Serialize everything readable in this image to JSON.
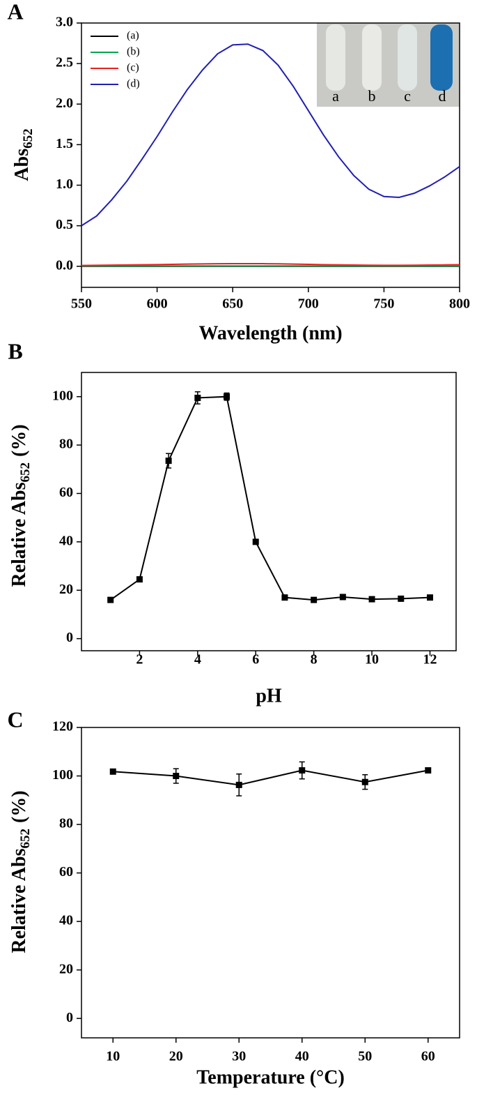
{
  "chart_data": [
    {
      "type": "line",
      "panel_label": "A",
      "x_label": "Wavelength (nm)",
      "y_label": "Abs",
      "y_label_subscript": "652",
      "x": [
        550,
        560,
        570,
        580,
        590,
        600,
        610,
        620,
        630,
        640,
        650,
        660,
        670,
        680,
        690,
        700,
        710,
        720,
        730,
        740,
        750,
        760,
        770,
        780,
        790,
        800
      ],
      "series": [
        {
          "name": "(a)",
          "color": "#000000",
          "values": [
            0,
            0,
            0,
            0,
            0,
            0,
            0,
            0,
            0,
            0,
            0,
            0,
            0,
            0,
            0,
            0,
            0,
            0,
            0,
            0,
            0,
            0,
            0,
            0,
            0,
            0
          ]
        },
        {
          "name": "(b)",
          "color": "#00a650",
          "values": [
            0.005,
            0.005,
            0.005,
            0.005,
            0.005,
            0.005,
            0.005,
            0.005,
            0.005,
            0.005,
            0.005,
            0.005,
            0.005,
            0.005,
            0.005,
            0.005,
            0.005,
            0.005,
            0.005,
            0.005,
            0.005,
            0.005,
            0.005,
            0.005,
            0.005,
            0.005
          ]
        },
        {
          "name": "(c)",
          "color": "#e8201c",
          "values": [
            0.01,
            0.012,
            0.014,
            0.016,
            0.018,
            0.021,
            0.024,
            0.027,
            0.029,
            0.031,
            0.032,
            0.033,
            0.032,
            0.03,
            0.027,
            0.024,
            0.02,
            0.017,
            0.015,
            0.013,
            0.012,
            0.012,
            0.013,
            0.015,
            0.017,
            0.02
          ]
        },
        {
          "name": "(d)",
          "color": "#1f1fb4",
          "values": [
            0.5,
            0.62,
            0.82,
            1.05,
            1.32,
            1.6,
            1.9,
            2.18,
            2.42,
            2.62,
            2.73,
            2.74,
            2.66,
            2.48,
            2.22,
            1.92,
            1.62,
            1.35,
            1.12,
            0.95,
            0.86,
            0.85,
            0.9,
            0.99,
            1.1,
            1.23
          ]
        }
      ],
      "xlim": [
        550,
        800
      ],
      "xticks": [
        550,
        600,
        650,
        700,
        750,
        800
      ],
      "ylim": [
        -0.26,
        3.0
      ],
      "yticks": [
        {
          "value": 0,
          "label": "0.0"
        },
        0.5,
        {
          "value": 1,
          "label": "1.0"
        },
        1.5,
        {
          "value": 2,
          "label": "2.0"
        },
        2.5,
        {
          "value": 3,
          "label": "3.0"
        }
      ],
      "legend": "upper left",
      "inset_labels": [
        "a",
        "b",
        "c",
        "d"
      ]
    },
    {
      "type": "line",
      "panel_label": "B",
      "x_label": "pH",
      "y_label": "Relative Abs",
      "y_label_subscript": "652",
      "y_label_suffix": "(%)",
      "x": [
        1,
        2,
        3,
        4,
        5,
        6,
        7,
        8,
        9,
        10,
        11,
        12
      ],
      "values": [
        16,
        24.5,
        73.5,
        99.5,
        100,
        40,
        17,
        16,
        17.2,
        16.3,
        16.5,
        17
      ],
      "errors": [
        0.5,
        0.5,
        3,
        2.5,
        1.5,
        0.5,
        0.5,
        0.5,
        0.5,
        0.5,
        0.5,
        0.5
      ],
      "color": "#000000",
      "markers": true,
      "xlim": [
        0,
        12.9
      ],
      "xticks": [
        2,
        4,
        6,
        8,
        10,
        12
      ],
      "ylim": [
        -5,
        110
      ],
      "yticks": [
        0,
        20,
        40,
        60,
        80,
        100
      ]
    },
    {
      "type": "line",
      "panel_label": "C",
      "x_label": "Temperature (°C)",
      "y_label": "Relative Abs",
      "y_label_subscript": "652",
      "y_label_suffix": "(%)",
      "x": [
        10,
        20,
        30,
        40,
        50,
        60
      ],
      "values": [
        101.8,
        100,
        96.3,
        102.3,
        97.5,
        102.3
      ],
      "errors": [
        1,
        3,
        4.5,
        3.5,
        3,
        1
      ],
      "color": "#000000",
      "markers": true,
      "xlim": [
        5,
        65
      ],
      "xticks": [
        10,
        20,
        30,
        40,
        50,
        60
      ],
      "ylim": [
        -8,
        120
      ],
      "yticks": [
        0,
        20,
        40,
        60,
        80,
        100,
        120
      ]
    }
  ]
}
